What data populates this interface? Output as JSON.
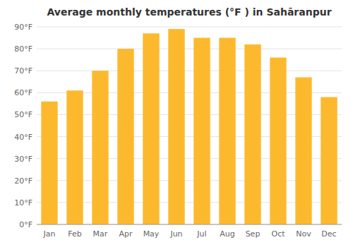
{
  "chart_data": {
    "type": "bar",
    "title": "Average monthly temperatures (°F ) in Sahāranpur",
    "categories": [
      "Jan",
      "Feb",
      "Mar",
      "Apr",
      "May",
      "Jun",
      "Jul",
      "Aug",
      "Sep",
      "Oct",
      "Nov",
      "Dec"
    ],
    "values": [
      56,
      61,
      70,
      80,
      87,
      89,
      85,
      85,
      82,
      76,
      67,
      58
    ],
    "color": "#FDB92E",
    "ylim": [
      0,
      90
    ],
    "yticks": [
      {
        "value": 0,
        "label": "0°F"
      },
      {
        "value": 10,
        "label": "10°F"
      },
      {
        "value": 20,
        "label": "20°F"
      },
      {
        "value": 30,
        "label": "30°F"
      },
      {
        "value": 40,
        "label": "40°F"
      },
      {
        "value": 50,
        "label": "50°F"
      },
      {
        "value": 60,
        "label": "60°F"
      },
      {
        "value": 70,
        "label": "70°F"
      },
      {
        "value": 80,
        "label": "80°F"
      },
      {
        "value": 90,
        "label": "90°F"
      }
    ],
    "grid": true
  }
}
